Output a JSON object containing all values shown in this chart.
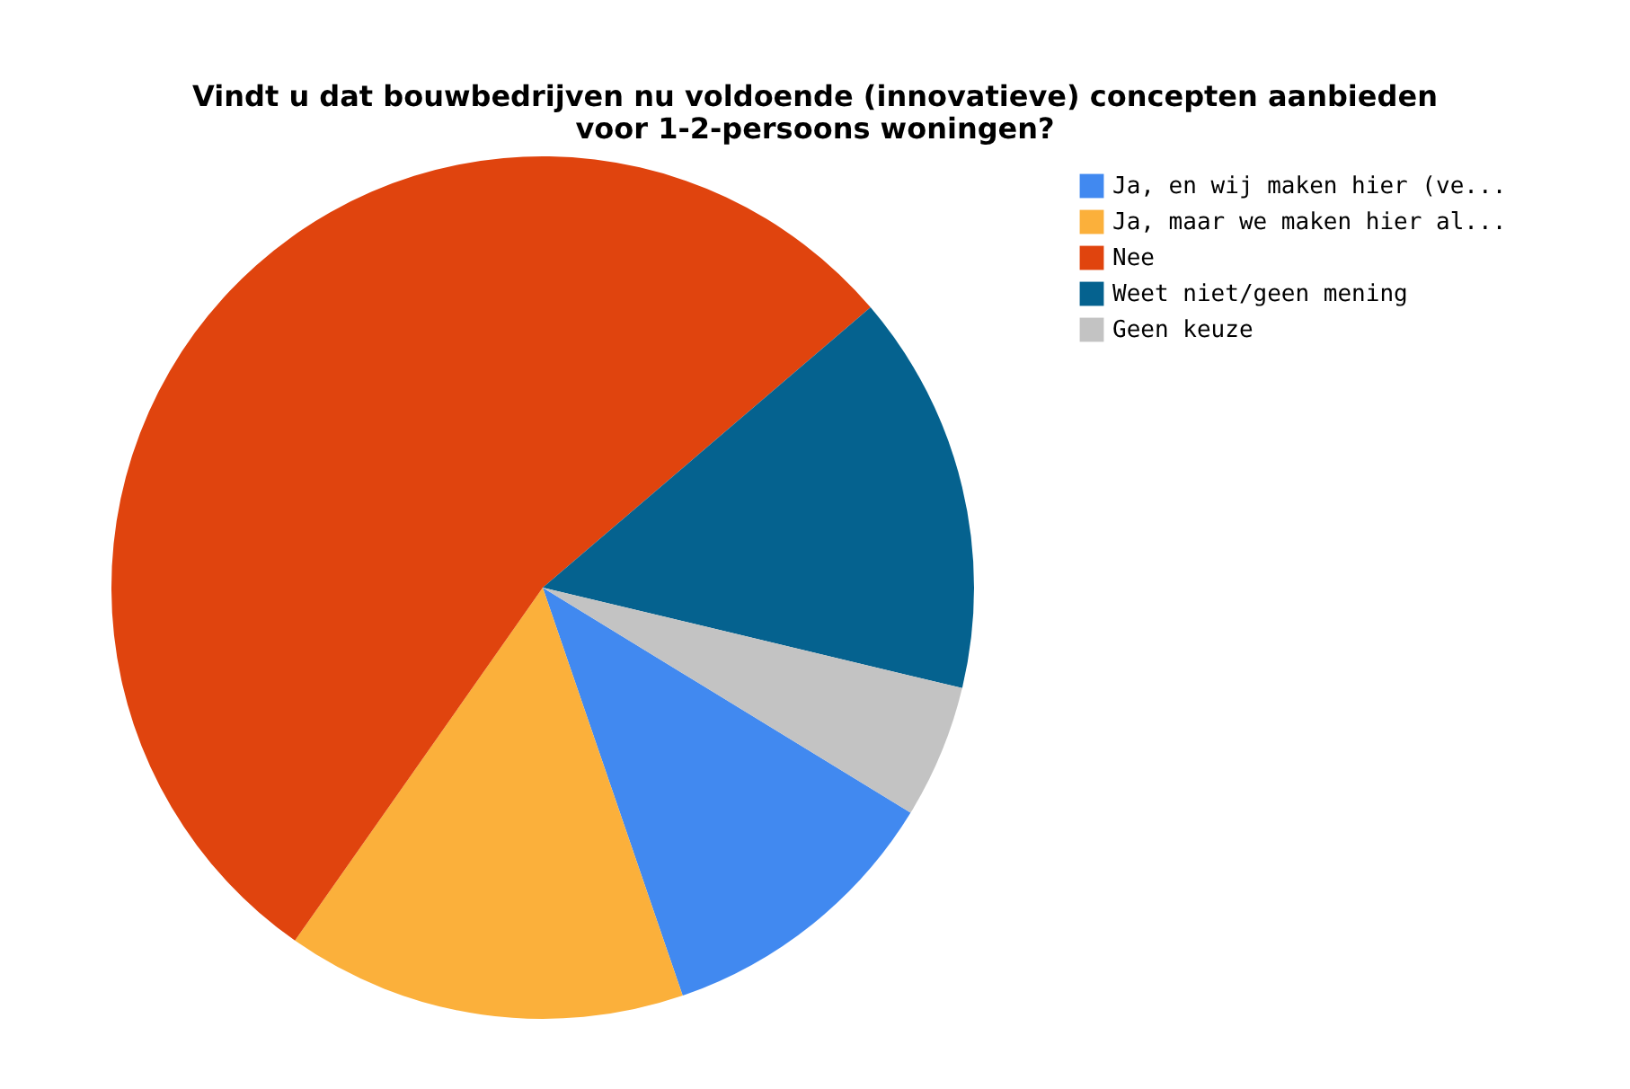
{
  "chart_data": {
    "type": "pie",
    "title": "Vindt u dat bouwbedrijven nu voldoende (innovatieve) concepten aanbieden voor 1-2-persoons woningen?",
    "categories": [
      "Ja, en wij maken hier (ve...",
      "Ja, maar we maken hier al...",
      "Nee",
      "Weet niet/geen mening",
      "Geen keuze"
    ],
    "values": [
      11,
      15,
      54,
      15,
      5
    ],
    "colors": [
      "#4189f0",
      "#fbb03b",
      "#e0440e",
      "#05628f",
      "#c3c3c3"
    ],
    "legend": "top right"
  }
}
